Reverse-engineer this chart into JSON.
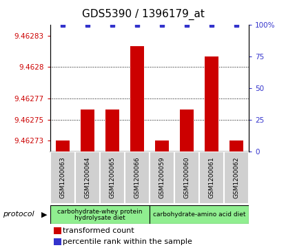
{
  "title": "GDS5390 / 1396179_at",
  "samples": [
    "GSM1200063",
    "GSM1200064",
    "GSM1200065",
    "GSM1200066",
    "GSM1200059",
    "GSM1200060",
    "GSM1200061",
    "GSM1200062"
  ],
  "transformed_counts": [
    9.46273,
    9.46276,
    9.46276,
    9.46282,
    9.46273,
    9.46276,
    9.46281,
    9.46273
  ],
  "percentile_ranks": [
    100,
    100,
    100,
    100,
    100,
    100,
    100,
    100
  ],
  "ylim_left": [
    9.46272,
    9.46284
  ],
  "yticks_left": [
    9.46273,
    9.46275,
    9.46277,
    9.4628,
    9.46283
  ],
  "ytick_labels_left": [
    "9.46273",
    "9.46275",
    "9.46277",
    "9.4628",
    "9.46283"
  ],
  "ylim_right": [
    0,
    100
  ],
  "yticks_right": [
    0,
    25,
    50,
    75,
    100
  ],
  "ytick_labels_right": [
    "0",
    "25",
    "50",
    "75",
    "100%"
  ],
  "dotted_lines": [
    9.46275,
    9.46277,
    9.4628
  ],
  "bar_color": "#cc0000",
  "dot_color": "#3333cc",
  "group1_label_line1": "carbohydrate-whey protein",
  "group1_label_line2": "hydrolysate diet",
  "group2_label": "carbohydrate-amino acid diet",
  "group_color": "#90ee90",
  "sample_box_color": "#d0d0d0",
  "protocol_label": "protocol",
  "legend_bar_label": "transformed count",
  "legend_dot_label": "percentile rank within the sample",
  "title_fontsize": 11,
  "tick_fontsize": 7.5,
  "sample_fontsize": 6.5,
  "legend_fontsize": 8
}
